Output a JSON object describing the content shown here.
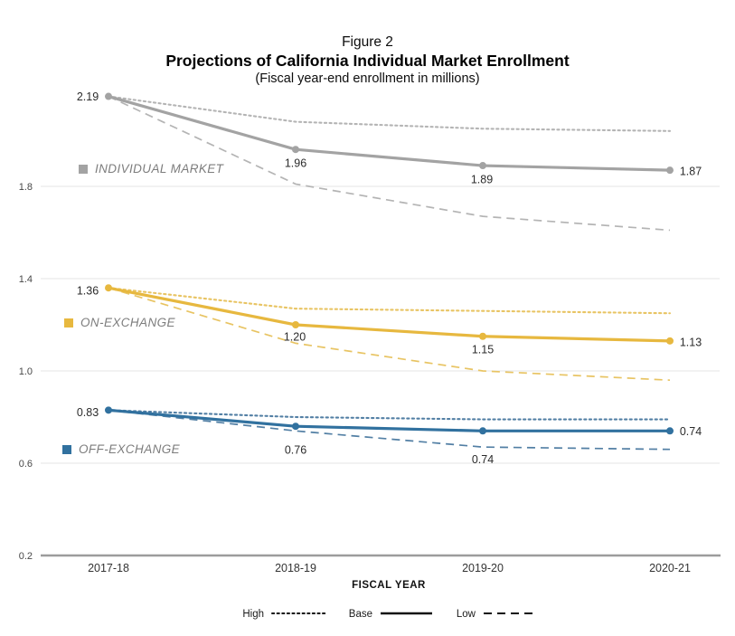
{
  "title": {
    "figure": "Figure 2",
    "main": "Projections of California Individual Market Enrollment",
    "subtitle": "(Fiscal year-end enrollment in millions)"
  },
  "chart_data": {
    "type": "line",
    "x_categories": [
      "2017-18",
      "2018-19",
      "2019-20",
      "2020-21"
    ],
    "xlabel": "FISCAL YEAR",
    "ylabel": "",
    "ylim": [
      0.2,
      2.3
    ],
    "ytick_labels": [
      "1.8",
      "1.4",
      "1.0",
      "0.6",
      "0.2"
    ],
    "yticks": [
      1.8,
      1.4,
      1.0,
      0.6,
      0.2
    ],
    "grid": "horizontal",
    "legend_position": "bottom",
    "scenario_legend": [
      {
        "label": "High",
        "style": "dotted"
      },
      {
        "label": "Base",
        "style": "solid"
      },
      {
        "label": "Low",
        "style": "dashed"
      }
    ],
    "series": [
      {
        "name": "INDIVIDUAL MARKET",
        "slug": "individual-market",
        "color": "#a3a3a3",
        "color_light": "#b4b4b4",
        "base": [
          2.19,
          1.96,
          1.89,
          1.87
        ],
        "high": [
          2.19,
          2.08,
          2.05,
          2.04
        ],
        "low": [
          2.19,
          1.81,
          1.67,
          1.61
        ],
        "base_labels": [
          "2.19",
          "1.96",
          "1.89",
          "1.87"
        ]
      },
      {
        "name": "ON-EXCHANGE",
        "slug": "on-exchange",
        "color": "#e7b83f",
        "color_light": "#e8c463",
        "base": [
          1.36,
          1.2,
          1.15,
          1.13
        ],
        "high": [
          1.36,
          1.27,
          1.26,
          1.25
        ],
        "low": [
          1.36,
          1.12,
          1.0,
          0.96
        ],
        "base_labels": [
          "1.36",
          "1.20",
          "1.15",
          "1.13"
        ]
      },
      {
        "name": "OFF-EXCHANGE",
        "slug": "off-exchange",
        "color": "#31719f",
        "color_light": "#527fa4",
        "base": [
          0.83,
          0.76,
          0.74,
          0.74
        ],
        "high": [
          0.83,
          0.8,
          0.79,
          0.79
        ],
        "low": [
          0.83,
          0.74,
          0.67,
          0.66
        ],
        "base_labels": [
          "0.83",
          "0.76",
          "0.74",
          "0.74"
        ]
      }
    ],
    "colors": {
      "grid": "#e4e4e4",
      "axis": "#9c9c9c",
      "tick_text": "#474747",
      "value_label_text": "#2b2b2b",
      "legend_text": "#1a1a1a"
    }
  }
}
